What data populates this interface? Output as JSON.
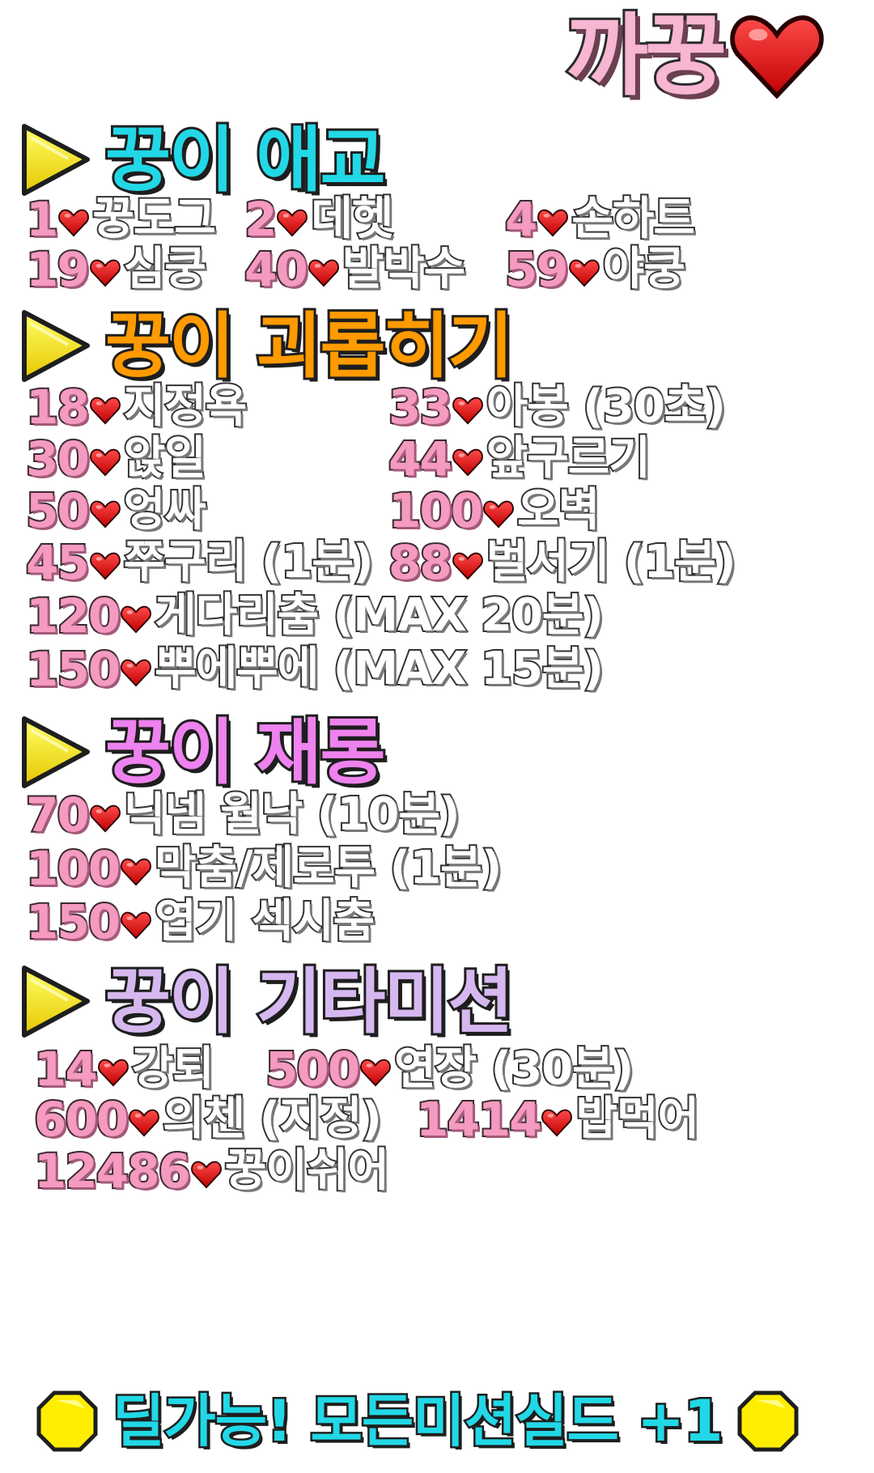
{
  "title": "까꿍",
  "colors": {
    "title_fill": "#f7b6d2",
    "cyan": "#22d8e6",
    "orange": "#ff9a00",
    "magenta": "#ee82ee",
    "lavender": "#d6b8f0",
    "number_pink": "#f59ac0",
    "heart_red": "#e00000",
    "arrow_yellow": "#ffee00"
  },
  "sections": [
    {
      "title": "꿍이 애교",
      "items": [
        {
          "num": "1",
          "label": "꿍도그"
        },
        {
          "num": "2",
          "label": "데헷"
        },
        {
          "num": "4",
          "label": "손하트"
        },
        {
          "num": "19",
          "label": "심쿵"
        },
        {
          "num": "40",
          "label": "발박수"
        },
        {
          "num": "59",
          "label": "야쿵"
        }
      ]
    },
    {
      "title": "꿍이 괴롭히기",
      "items": [
        {
          "num": "18",
          "label": "지정욕"
        },
        {
          "num": "33",
          "label": "아봉 (30초)"
        },
        {
          "num": "30",
          "label": "앉일"
        },
        {
          "num": "44",
          "label": "앞구르기"
        },
        {
          "num": "50",
          "label": "엉싸"
        },
        {
          "num": "100",
          "label": "오벽"
        },
        {
          "num": "45",
          "label": "쭈구리 (1분)"
        },
        {
          "num": "88",
          "label": "벌서기 (1분)"
        },
        {
          "num": "120",
          "label": "게다리춤 (MAX 20분)"
        },
        {
          "num": "150",
          "label": "뿌에뿌에 (MAX 15분)"
        }
      ]
    },
    {
      "title": "꿍이 재롱",
      "items": [
        {
          "num": "70",
          "label": "닉넴 월낙 (10분)"
        },
        {
          "num": "100",
          "label": "막춤/제로투 (1분)"
        },
        {
          "num": "150",
          "label": "엽기 섹시춤"
        }
      ]
    },
    {
      "title": "꿍이 기타미션",
      "items": [
        {
          "num": "14",
          "label": "강퇴"
        },
        {
          "num": "500",
          "label": "연장 (30분)"
        },
        {
          "num": "600",
          "label": "의첸 (지정)"
        },
        {
          "num": "1414",
          "label": "밥먹어"
        },
        {
          "num": "12486",
          "label": "꿍이쉬어"
        }
      ]
    }
  ],
  "footer": "딜가능! 모든미션실드 +1"
}
